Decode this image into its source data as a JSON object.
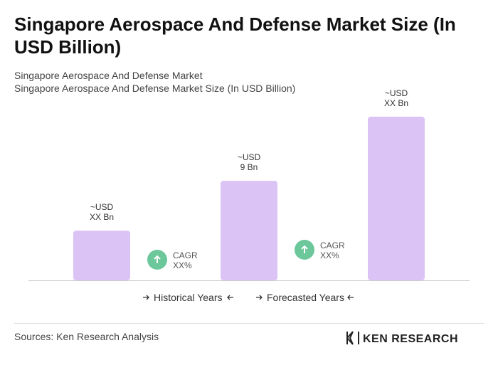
{
  "chart_data": {
    "type": "bar",
    "title": "Singapore Aerospace And Defense Market Size (In USD Billion)",
    "subtitle": "Singapore Aerospace And Defense Market",
    "subtitle2": "Singapore Aerospace And Defense Market Size (In USD Billion)",
    "categories": [
      null,
      null,
      null
    ],
    "values": [
      4.5,
      9,
      14.8
    ],
    "value_labels": [
      [
        "~USD",
        "XX Bn"
      ],
      [
        "~USD",
        "9 Bn"
      ],
      [
        "~USD",
        "XX Bn"
      ]
    ],
    "color": "#dcc3f5",
    "annotations": [
      [
        "CAGR",
        "XX%"
      ],
      [
        "CAGR",
        "XX%"
      ]
    ],
    "annotation_color": "#6cc79a",
    "periods": [
      "Historical Years",
      "Forecasted Years"
    ],
    "source": "Sources: Ken Research Analysis",
    "brand": "KEN RESEARCH"
  }
}
